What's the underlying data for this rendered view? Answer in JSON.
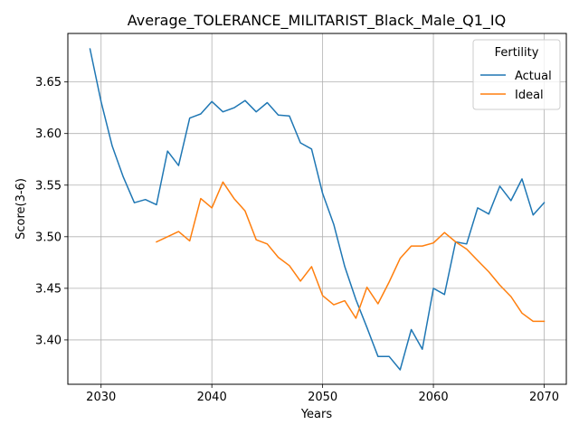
{
  "chart_data": {
    "type": "line",
    "title": "Average_TOLERANCE_MILITARIST_Black_Male_Q1_IQ",
    "xlabel": "Years",
    "ylabel": "Score(3-6)",
    "xlim": [
      2027,
      2072
    ],
    "ylim": [
      3.357,
      3.697
    ],
    "xticks": [
      2030,
      2040,
      2050,
      2060,
      2070
    ],
    "yticks": [
      3.4,
      3.45,
      3.5,
      3.55,
      3.6,
      3.65
    ],
    "xtick_labels": [
      "2030",
      "2040",
      "2050",
      "2060",
      "2070"
    ],
    "ytick_labels": [
      "3.40",
      "3.45",
      "3.50",
      "3.55",
      "3.60",
      "3.65"
    ],
    "grid": true,
    "legend": {
      "title": "Fertility",
      "position": "top-right"
    },
    "series": [
      {
        "name": "Actual",
        "color": "#1f77b4",
        "x": [
          2029,
          2030,
          2031,
          2032,
          2033,
          2034,
          2035,
          2036,
          2037,
          2038,
          2039,
          2040,
          2041,
          2042,
          2043,
          2044,
          2045,
          2046,
          2047,
          2048,
          2049,
          2050,
          2051,
          2052,
          2053,
          2054,
          2055,
          2056,
          2057,
          2058,
          2059,
          2060,
          2061,
          2062,
          2063,
          2064,
          2065,
          2066,
          2067,
          2068,
          2069,
          2070
        ],
        "values": [
          3.682,
          3.631,
          3.588,
          3.558,
          3.533,
          3.536,
          3.531,
          3.583,
          3.569,
          3.615,
          3.619,
          3.631,
          3.621,
          3.625,
          3.632,
          3.621,
          3.63,
          3.618,
          3.617,
          3.591,
          3.585,
          3.542,
          3.512,
          3.471,
          3.439,
          3.412,
          3.384,
          3.384,
          3.371,
          3.41,
          3.391,
          3.45,
          3.444,
          3.495,
          3.493,
          3.528,
          3.522,
          3.549,
          3.535,
          3.556,
          3.521,
          3.533
        ]
      },
      {
        "name": "Ideal",
        "color": "#ff7f0e",
        "x": [
          2035,
          2036,
          2037,
          2038,
          2039,
          2040,
          2041,
          2042,
          2043,
          2044,
          2045,
          2046,
          2047,
          2048,
          2049,
          2050,
          2051,
          2052,
          2053,
          2054,
          2055,
          2056,
          2057,
          2058,
          2059,
          2060,
          2061,
          2062,
          2063,
          2064,
          2065,
          2066,
          2067,
          2068,
          2069,
          2070
        ],
        "values": [
          3.495,
          3.5,
          3.505,
          3.496,
          3.537,
          3.528,
          3.553,
          3.537,
          3.525,
          3.497,
          3.493,
          3.48,
          3.472,
          3.457,
          3.471,
          3.443,
          3.434,
          3.438,
          3.421,
          3.451,
          3.435,
          3.456,
          3.479,
          3.491,
          3.491,
          3.494,
          3.504,
          3.495,
          3.488,
          3.477,
          3.466,
          3.453,
          3.442,
          3.426,
          3.418,
          3.418
        ]
      }
    ]
  }
}
